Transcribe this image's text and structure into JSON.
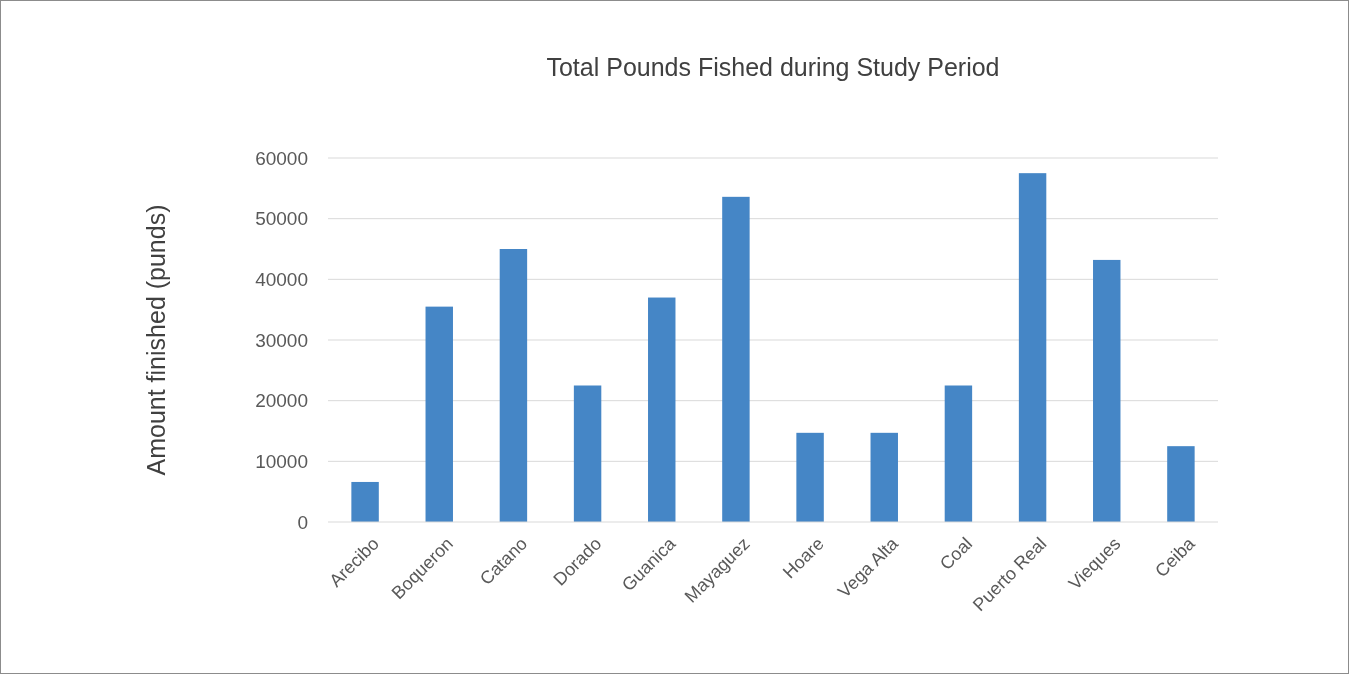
{
  "chart_data": {
    "type": "bar",
    "title": "Total Pounds Fished during Study Period",
    "ylabel": "Amount finished (punds)",
    "categories": [
      "Arecibo",
      "Boqueron",
      "Catano",
      "Dorado",
      "Guanica",
      "Mayaguez",
      "Hoare",
      "Vega Alta",
      "Coal",
      "Puerto Real",
      "Vieques",
      "Ceiba"
    ],
    "values": [
      6600,
      35500,
      45000,
      22500,
      37000,
      53600,
      14700,
      14700,
      22500,
      57500,
      43200,
      12500
    ],
    "color": "#4586c6",
    "ylim": [
      0,
      60000
    ],
    "yticks": [
      0,
      10000,
      20000,
      30000,
      40000,
      50000,
      60000
    ],
    "grid": "y"
  }
}
